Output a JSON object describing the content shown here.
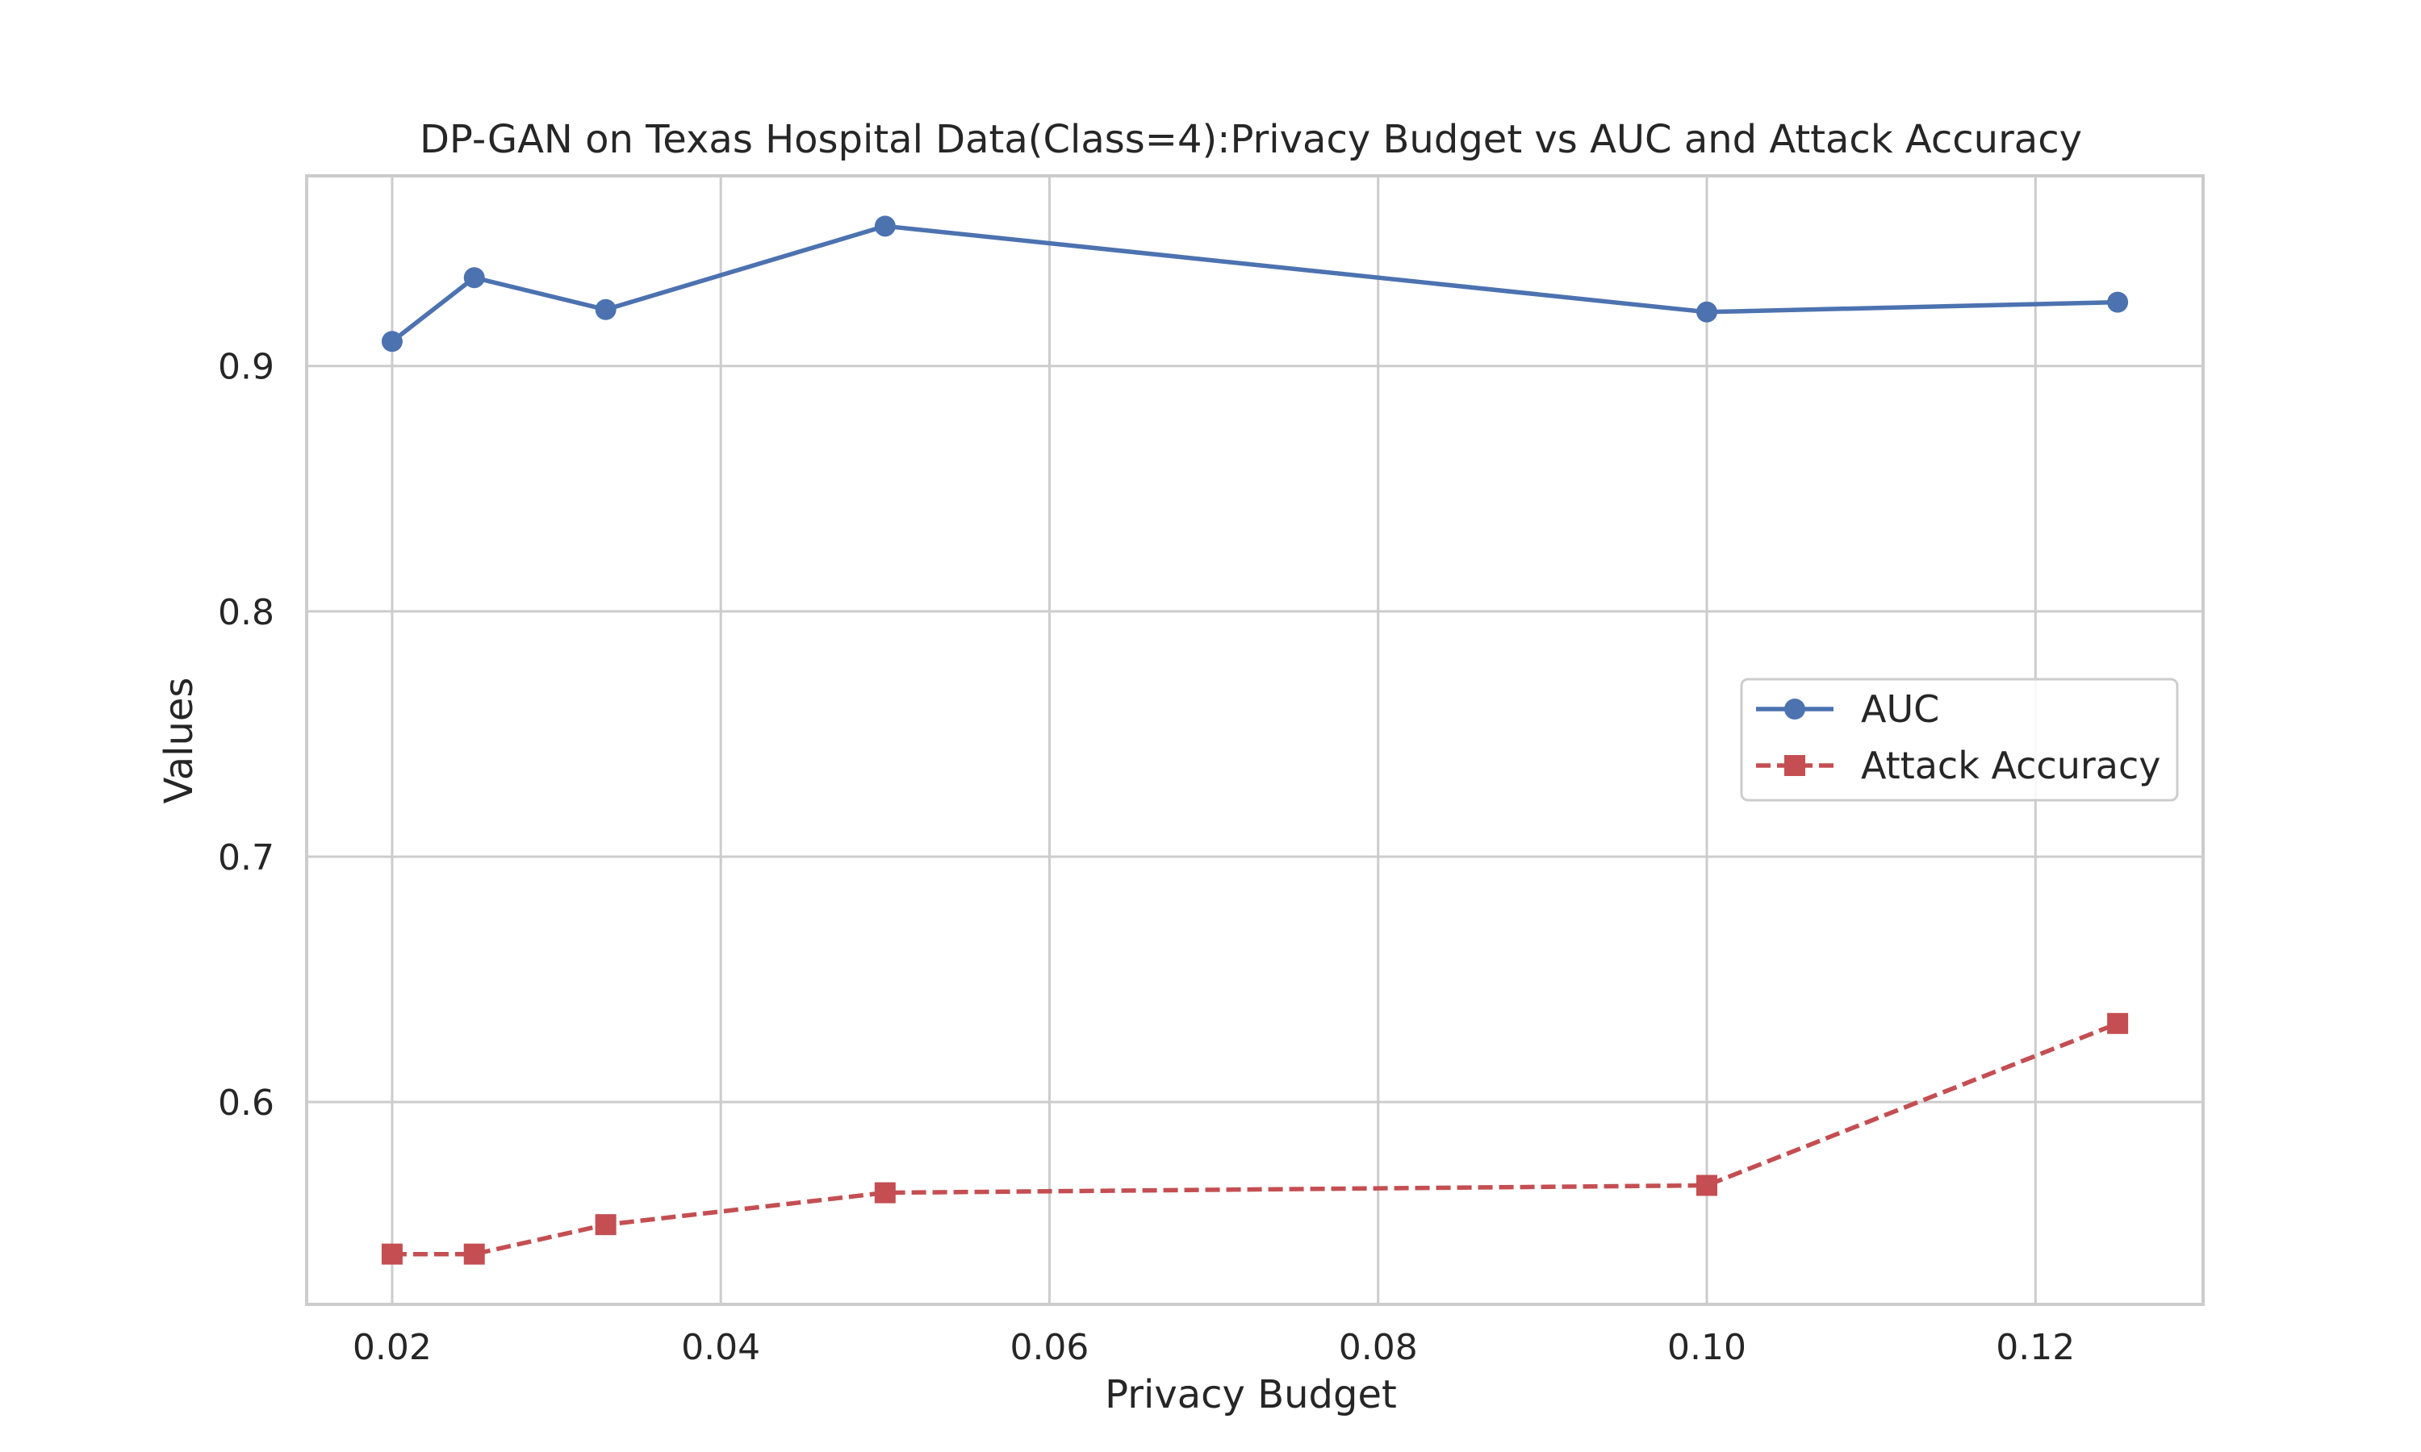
{
  "chart_data": {
    "type": "line",
    "title": "DP-GAN on Texas Hospital Data(Class=4):Privacy Budget vs AUC and Attack Accuracy",
    "xlabel": "Privacy Budget",
    "ylabel": "Values",
    "xlim": [
      0.0148,
      0.1302
    ],
    "ylim": [
      0.5175,
      0.9775
    ],
    "xticks": [
      0.02,
      0.04,
      0.06,
      0.08,
      0.1,
      0.12
    ],
    "xtick_labels": [
      "0.02",
      "0.04",
      "0.06",
      "0.08",
      "0.10",
      "0.12"
    ],
    "yticks": [
      0.6,
      0.7,
      0.8,
      0.9
    ],
    "ytick_labels": [
      "0.6",
      "0.7",
      "0.8",
      "0.9"
    ],
    "grid": true,
    "legend_position": "center-right",
    "x": [
      0.02,
      0.025,
      0.033,
      0.05,
      0.1,
      0.125
    ],
    "series": [
      {
        "name": "AUC",
        "values": [
          0.91,
          0.936,
          0.923,
          0.957,
          0.922,
          0.926
        ],
        "color": "#4c72b0",
        "marker": "circle",
        "linestyle": "solid"
      },
      {
        "name": "Attack Accuracy",
        "values": [
          0.538,
          0.538,
          0.55,
          0.563,
          0.566,
          0.632
        ],
        "color": "#c44e52",
        "marker": "square",
        "linestyle": "dashed"
      }
    ]
  }
}
